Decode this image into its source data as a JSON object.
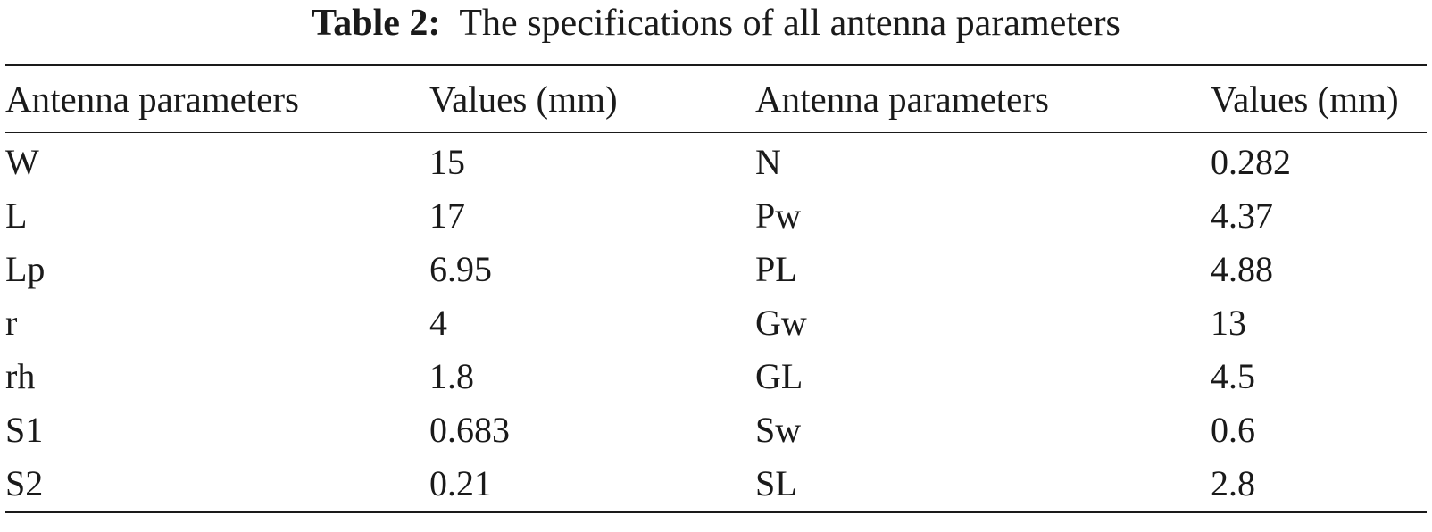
{
  "caption": {
    "label": "Table 2:",
    "text": "The specifications of all antenna parameters"
  },
  "table": {
    "headers": [
      "Antenna parameters",
      "Values (mm)",
      "Antenna parameters",
      "Values (mm)"
    ],
    "rows": [
      [
        "W",
        "15",
        "N",
        "0.282"
      ],
      [
        "L",
        "17",
        "Pw",
        "4.37"
      ],
      [
        "Lp",
        "6.95",
        "PL",
        "4.88"
      ],
      [
        "r",
        "4",
        "Gw",
        "13"
      ],
      [
        "rh",
        "1.8",
        "GL",
        "4.5"
      ],
      [
        "S1",
        "0.683",
        "Sw",
        "0.6"
      ],
      [
        "S2",
        "0.21",
        "SL",
        "2.8"
      ]
    ]
  }
}
